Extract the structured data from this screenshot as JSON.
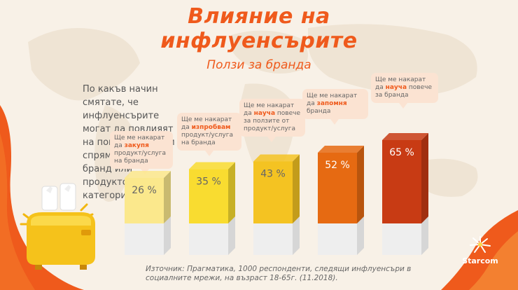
{
  "title": "Влияние на инфлуенсърите",
  "subtitle": "Ползи за бранда",
  "question": "По какъв начин смятате, че инфлуенсърите могат да повлияят на поведението Ви спрямо определен бранд или продуктова категория?",
  "source": "Източник: Прагматика, 1000 респонденти, следящи инфлуенсъри в социалните мрежи, на възраст 18-65г. (11.2018).",
  "logo": {
    "name": "Starcom"
  },
  "colors": {
    "accent": "#ef5a1c",
    "bubble": "#fbe3d2",
    "bars": [
      "#fbe88c",
      "#f9dc30",
      "#f4c322",
      "#e66a12",
      "#c83b14"
    ]
  },
  "bubbles": [
    {
      "pre": "Ще ме накарат да ",
      "bold": "закупя",
      "post": " продукт/услуга на бранда"
    },
    {
      "pre": "Ще ме накарат да ",
      "bold": "изпробвам",
      "post": " продукт/услуга на бранда"
    },
    {
      "pre": "Ще ме накарат да ",
      "bold": "науча",
      "post": " повече за ползите от продукт/услуга"
    },
    {
      "pre": "Ще ме накарат да ",
      "bold": "запомня",
      "post": " бранда"
    },
    {
      "pre": "Ще ме накарат да ",
      "bold": "науча",
      "post": " повече за бранда"
    }
  ],
  "chart_data": {
    "type": "bar",
    "categories": [
      "закупя",
      "изпробвам",
      "науча (ползи)",
      "запомня",
      "науча (бранд)"
    ],
    "values": [
      26,
      35,
      43,
      52,
      65
    ],
    "value_labels": [
      "26 %",
      "35 %",
      "43 %",
      "52 %",
      "65 %"
    ],
    "ylim": [
      0,
      65
    ],
    "grid": false,
    "legend": "none"
  }
}
